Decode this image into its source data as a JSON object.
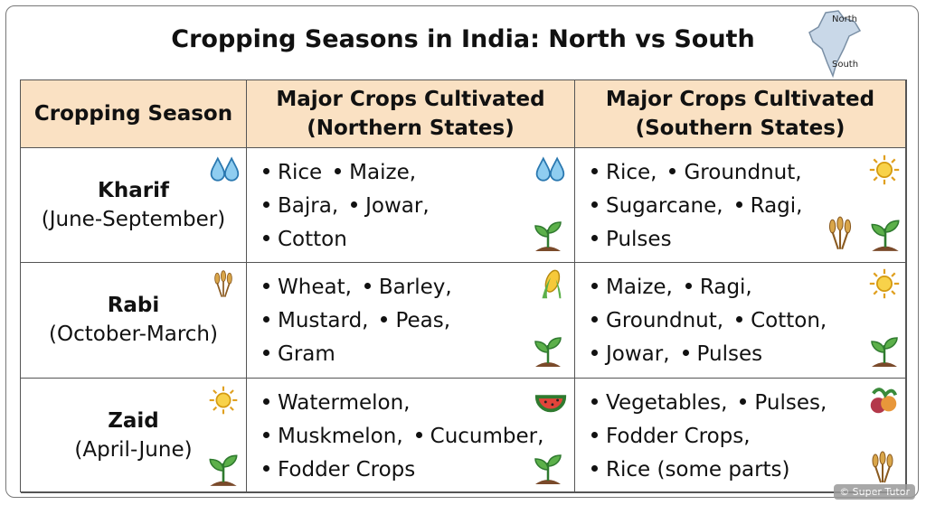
{
  "header": {
    "title": "Cropping Seasons in India: North vs South",
    "map_labels": [
      "North",
      "South"
    ]
  },
  "table": {
    "columns": [
      "Cropping Season",
      "Major Crops Cultivated (Northern States)",
      "Major Crops Cultivated (Southern States)"
    ],
    "rows": [
      {
        "season": "Kharif",
        "period": "(June-September)",
        "north": [
          [
            "Rice",
            "Maize,"
          ],
          [
            "Bajra,",
            "Jowar,"
          ],
          [
            "Cotton"
          ]
        ],
        "south": [
          [
            "Rice,",
            "Groundnut,"
          ],
          [
            "Sugarcane,",
            "Ragi,"
          ],
          [
            "Pulses"
          ]
        ]
      },
      {
        "season": "Rabi",
        "period": "(October-March)",
        "north": [
          [
            "Wheat,",
            "Barley,"
          ],
          [
            "Mustard,",
            "Peas,"
          ],
          [
            "Gram"
          ]
        ],
        "south": [
          [
            "Maize,",
            "Ragi,"
          ],
          [
            "Groundnut,",
            "Cotton,"
          ],
          [
            "Jowar,",
            "Pulses"
          ]
        ]
      },
      {
        "season": "Zaid",
        "period": "(April-June)",
        "north": [
          [
            "Watermelon,"
          ],
          [
            "Muskmelon,",
            "Cucumber,"
          ],
          [
            "Fodder Crops"
          ]
        ],
        "south": [
          [
            "Vegetables,",
            "Pulses,"
          ],
          [
            "Fodder Crops,"
          ],
          [
            "Rice (some parts)"
          ]
        ]
      }
    ]
  },
  "watermark": "© Super Tutor"
}
